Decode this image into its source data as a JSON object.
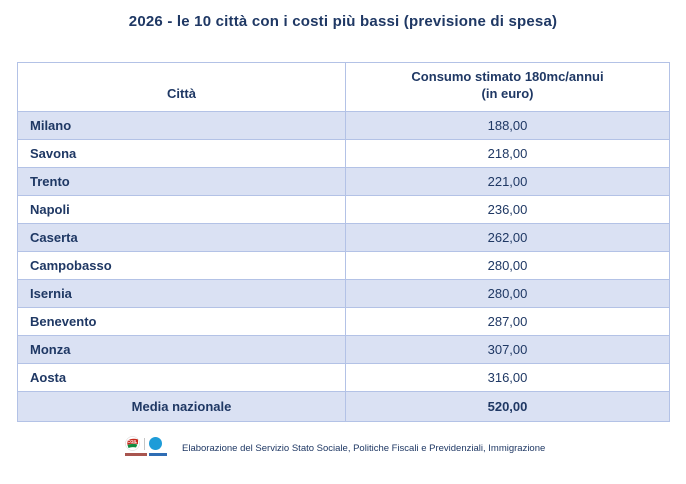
{
  "title": "2026 - le 10 città con i costi più bassi (previsione di spesa)",
  "table": {
    "header": {
      "col1": "Città",
      "col2_line1": "Consumo stimato 180mc/annui",
      "col2_line2": "(in euro)"
    },
    "rows": [
      {
        "city": "Milano",
        "value": "188,00"
      },
      {
        "city": "Savona",
        "value": "218,00"
      },
      {
        "city": "Trento",
        "value": "221,00"
      },
      {
        "city": "Napoli",
        "value": "236,00"
      },
      {
        "city": "Caserta",
        "value": "262,00"
      },
      {
        "city": "Campobasso",
        "value": "280,00"
      },
      {
        "city": "Isernia",
        "value": "280,00"
      },
      {
        "city": "Benevento",
        "value": "287,00"
      },
      {
        "city": "Monza",
        "value": "307,00"
      },
      {
        "city": "Aosta",
        "value": "316,00"
      }
    ],
    "summary": {
      "label": "Media nazionale",
      "value": "520,00"
    }
  },
  "footer": {
    "logo": "cgil-logo",
    "source": "Elaborazione del Servizio Stato Sociale, Politiche Fiscali e Previdenziali, Immigrazione"
  },
  "colors": {
    "text": "#1f3864",
    "row_alt": "#dae1f3",
    "border": "#b3c2e6",
    "logo_red": "#c5281c",
    "logo_green": "#0e8a3e",
    "logo_blue": "#1e9cd8"
  },
  "chart_data": {
    "type": "table",
    "title": "2026 - le 10 città con i costi più bassi (previsione di spesa)",
    "columns": [
      "Città",
      "Consumo stimato 180mc/annui (in euro)"
    ],
    "rows": [
      [
        "Milano",
        188.0
      ],
      [
        "Savona",
        218.0
      ],
      [
        "Trento",
        221.0
      ],
      [
        "Napoli",
        236.0
      ],
      [
        "Caserta",
        262.0
      ],
      [
        "Campobasso",
        280.0
      ],
      [
        "Isernia",
        280.0
      ],
      [
        "Benevento",
        287.0
      ],
      [
        "Monza",
        307.0
      ],
      [
        "Aosta",
        316.0
      ]
    ],
    "summary_row": [
      "Media nazionale",
      520.0
    ],
    "source": "Elaborazione del Servizio Stato Sociale, Politiche Fiscali e Previdenziali, Immigrazione",
    "notes": "Alternating shaded rows; values are euro amounts with Italian comma decimals; summary row bold."
  }
}
